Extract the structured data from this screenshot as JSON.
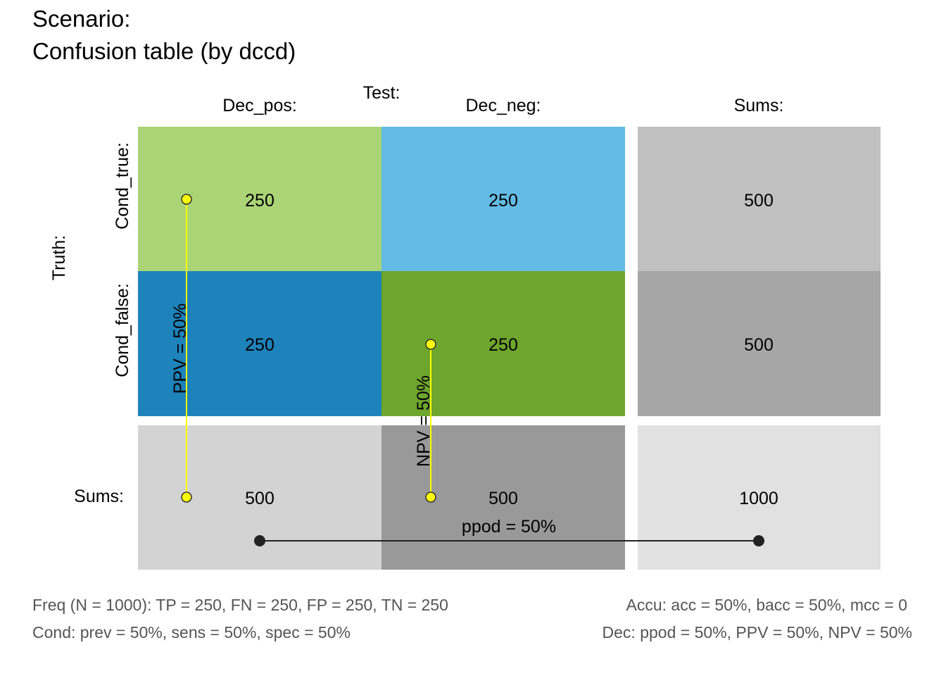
{
  "title": {
    "line1": "Scenario:",
    "line2": "Confusion table (by dccd)"
  },
  "headers": {
    "test": "Test:",
    "dec_pos": "Dec_pos:",
    "dec_neg": "Dec_neg:",
    "sums_col": "Sums:",
    "truth": "Truth:",
    "cond_true": "Cond_true:",
    "cond_false": "Cond_false:",
    "sums_row": "Sums:"
  },
  "cells": {
    "tp": "250",
    "fn": "250",
    "fp": "250",
    "tn": "250",
    "cond_true_sum": "500",
    "cond_false_sum": "500",
    "dec_pos_sum": "500",
    "dec_neg_sum": "500",
    "total": "1000"
  },
  "colors": {
    "tp": "#ABD477",
    "fn": "#63BBE5",
    "fp": "#1E82BB",
    "tn": "#6EA52D",
    "cond_true_sum": "#C0C0C0",
    "cond_false_sum": "#A6A6A6",
    "dec_pos_sum": "#D3D3D3",
    "dec_neg_sum": "#999999",
    "total": "#E1E1E1",
    "ppv_npv_line": "#FFFF00",
    "ppod_line": "#222222",
    "footer_text": "#555555"
  },
  "metrics": {
    "ppv": {
      "label": "PPV = 50%",
      "value": 0.5
    },
    "npv": {
      "label": "NPV = 50%",
      "value": 0.5
    },
    "ppod": {
      "label": "ppod = 50%",
      "value": 0.5
    }
  },
  "footer": {
    "freq": "Freq (N = 1000):  TP = 250, FN = 250, FP = 250, TN = 250",
    "accu": "Accu:  acc = 50%, bacc = 50%, mcc = 0",
    "cond": "Cond:  prev = 50%, sens = 50%, spec = 50%",
    "dec": "Dec:  ppod = 50%, PPV = 50%, NPV = 50%"
  }
}
